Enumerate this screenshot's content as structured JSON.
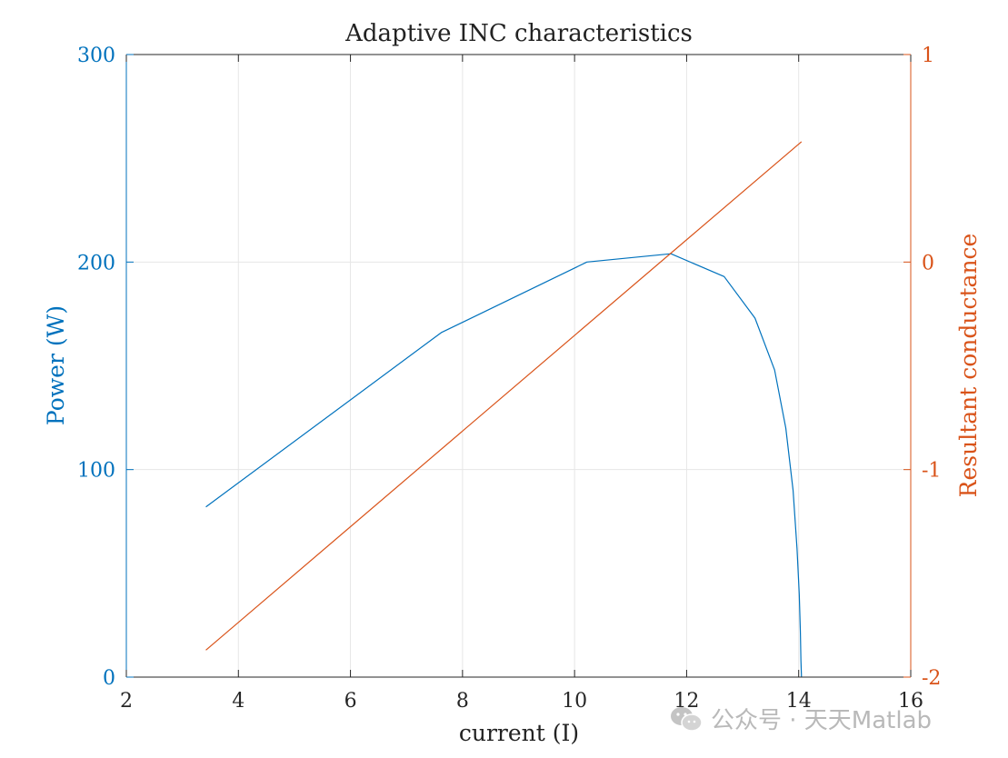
{
  "chart_data": {
    "type": "line",
    "title": "Adaptive INC characteristics",
    "xlabel": "current (I)",
    "xlim": [
      2,
      16
    ],
    "xticks": [
      "2",
      "4",
      "6",
      "8",
      "10",
      "12",
      "14",
      "16"
    ],
    "grid": true,
    "axes": {
      "left": {
        "label": "Power (W)",
        "color": "#0072BD",
        "ylim": [
          0,
          300
        ],
        "ticks": [
          "0",
          "100",
          "200",
          "300"
        ]
      },
      "right": {
        "label": "Resultant conductance",
        "color": "#D95319",
        "ylim": [
          -2,
          1
        ],
        "ticks": [
          "-2",
          "-1",
          "0",
          "1"
        ]
      }
    },
    "series": [
      {
        "axis": "left",
        "color": "#0072BD",
        "x": [
          3.42,
          7.62,
          10.22,
          11.72,
          12.67,
          13.22,
          13.57,
          13.77,
          13.9,
          13.97,
          14.01,
          14.03,
          14.04,
          14.05
        ],
        "y": [
          82,
          166,
          200,
          204,
          193,
          173,
          148,
          120,
          90,
          62,
          40,
          22,
          8,
          0
        ]
      },
      {
        "axis": "right",
        "color": "#D95319",
        "x": [
          3.42,
          14.05
        ],
        "y": [
          -1.87,
          0.58
        ]
      }
    ]
  },
  "watermark": {
    "text": "公众号 · 天天Matlab",
    "icon": "wechat-icon"
  }
}
